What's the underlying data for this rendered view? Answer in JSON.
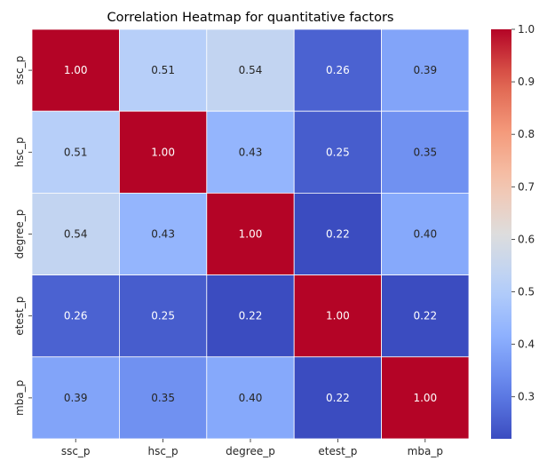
{
  "chart_data": {
    "type": "heatmap",
    "title": "Correlation Heatmap for quantitative factors",
    "xlabel": "",
    "ylabel": "",
    "x_categories": [
      "ssc_p",
      "hsc_p",
      "degree_p",
      "etest_p",
      "mba_p"
    ],
    "y_categories": [
      "ssc_p",
      "hsc_p",
      "degree_p",
      "etest_p",
      "mba_p"
    ],
    "values": [
      [
        1.0,
        0.51,
        0.54,
        0.26,
        0.39
      ],
      [
        0.51,
        1.0,
        0.43,
        0.25,
        0.35
      ],
      [
        0.54,
        0.43,
        1.0,
        0.22,
        0.4
      ],
      [
        0.26,
        0.25,
        0.22,
        1.0,
        0.22
      ],
      [
        0.39,
        0.35,
        0.4,
        0.22,
        1.0
      ]
    ],
    "cell_labels": [
      [
        "1.00",
        "0.51",
        "0.54",
        "0.26",
        "0.39"
      ],
      [
        "0.51",
        "1.00",
        "0.43",
        "0.25",
        "0.35"
      ],
      [
        "0.54",
        "0.43",
        "1.00",
        "0.22",
        "0.40"
      ],
      [
        "0.26",
        "0.25",
        "0.22",
        "1.00",
        "0.22"
      ],
      [
        "0.39",
        "0.35",
        "0.40",
        "0.22",
        "1.00"
      ]
    ],
    "colormap": "coolwarm",
    "color_range": [
      0.22,
      1.0
    ],
    "colorbar_ticks": [
      "0.3",
      "0.4",
      "0.5",
      "0.6",
      "0.7",
      "0.8",
      "0.9",
      "1.0"
    ],
    "colorbar_placement": "right",
    "grid": false
  }
}
